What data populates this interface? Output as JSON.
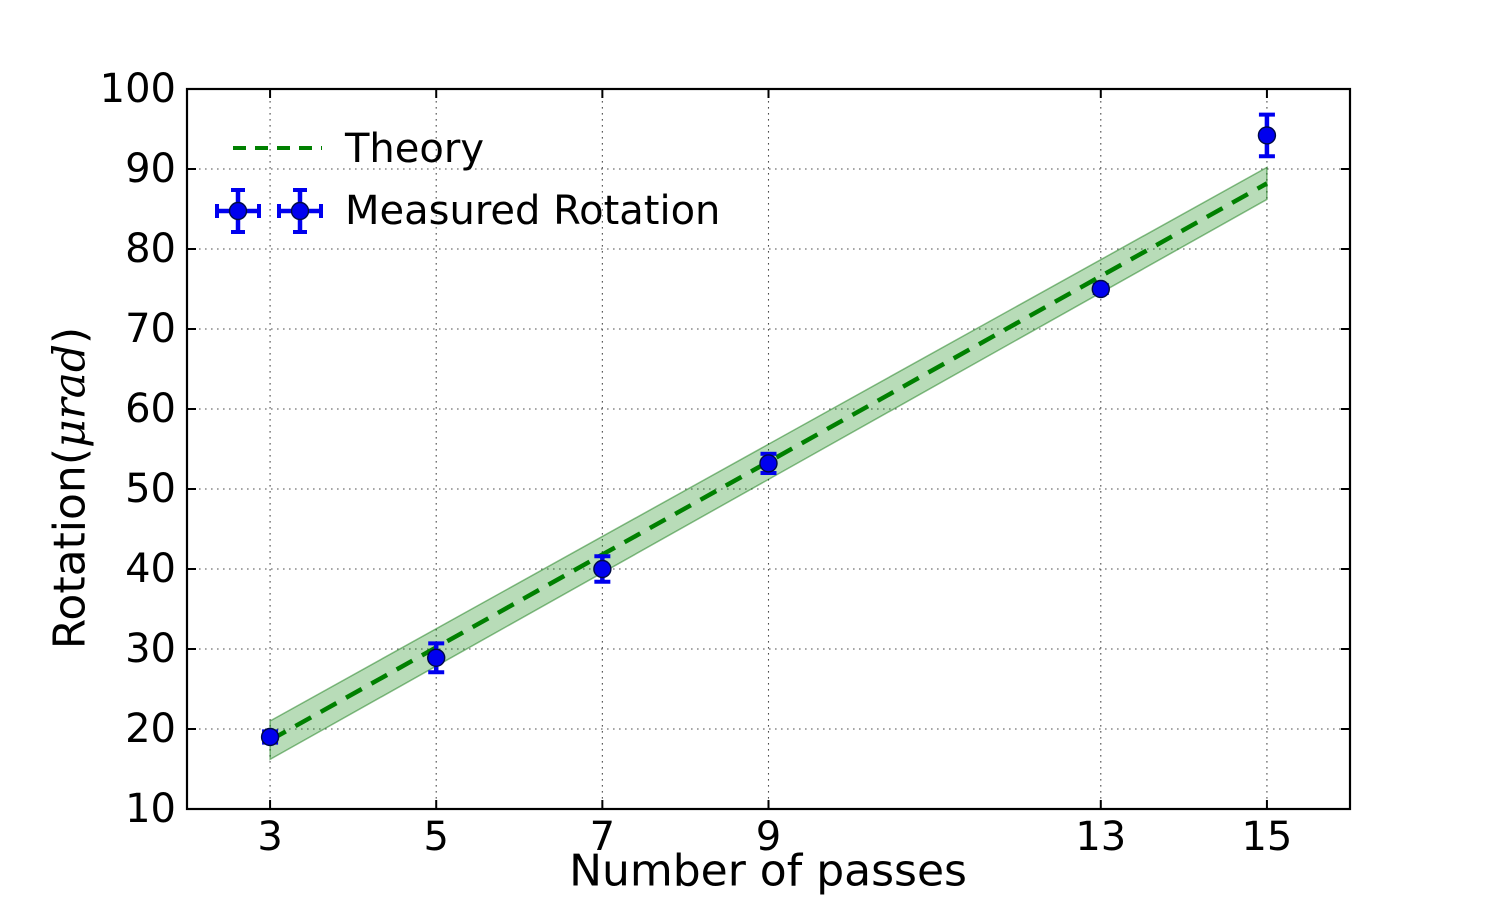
{
  "figure": {
    "xlabel": "Number of passes",
    "ylabel_prefix": "Rotation(",
    "ylabel_math": "μrad",
    "ylabel_suffix": ")"
  },
  "legend": {
    "position": "upper-left",
    "items": [
      {
        "label": "Theory",
        "style": "green-dashed-line"
      },
      {
        "label": "Measured Rotation",
        "style": "blue-errorbar-point"
      }
    ]
  },
  "chart_data": {
    "type": "line",
    "title": "",
    "xlabel": "Number of passes",
    "ylabel": "Rotation(μrad)",
    "xlim": [
      2,
      16
    ],
    "ylim": [
      10,
      100
    ],
    "xticks": [
      3,
      5,
      7,
      9,
      13,
      15
    ],
    "yticks": [
      10,
      20,
      30,
      40,
      50,
      60,
      70,
      80,
      90,
      100
    ],
    "grid": true,
    "grid_style": "dotted",
    "legend_position": "upper left, no frame",
    "colors": {
      "theory_line": "#008000",
      "band_fill": "rgba(0,128,0,0.28)",
      "band_edge": "rgba(0,110,0,0.45)",
      "measured": "#0000ee",
      "marker_edge": "#000a46",
      "grid": "#4d4d4d",
      "axes": "#000000"
    },
    "series": [
      {
        "name": "Theory",
        "type": "dashed-line-with-confidence-band",
        "x": [
          3,
          15
        ],
        "y": [
          18.6,
          88.2
        ],
        "band_upper": [
          21.0,
          90.2
        ],
        "band_lower": [
          16.2,
          86.2
        ]
      },
      {
        "name": "Measured Rotation",
        "type": "errorbar-scatter",
        "points": [
          {
            "x": 3,
            "y": 19.0,
            "yerr": 0.7
          },
          {
            "x": 5,
            "y": 28.9,
            "yerr": 1.8
          },
          {
            "x": 7,
            "y": 40.0,
            "yerr": 1.6
          },
          {
            "x": 9,
            "y": 53.2,
            "yerr": 1.2
          },
          {
            "x": 13,
            "y": 75.0,
            "yerr": 0.5
          },
          {
            "x": 15,
            "y": 94.2,
            "yerr": 2.6
          }
        ]
      }
    ]
  }
}
